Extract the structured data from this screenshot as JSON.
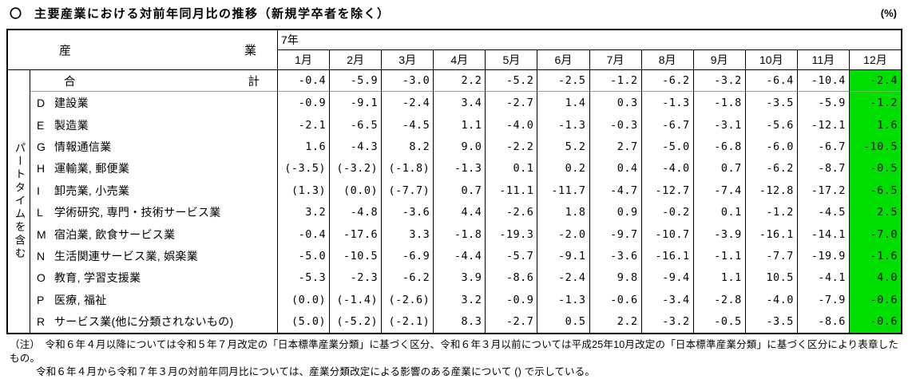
{
  "title": {
    "bullet": "〇",
    "text": "主要産業における対前年同月比の推移（新規学卒者を除く）",
    "unit": "(%)"
  },
  "table": {
    "industry_header_left": "産",
    "industry_header_right": "業",
    "year_label": "7年",
    "months": [
      "1月",
      "2月",
      "3月",
      "4月",
      "5月",
      "6月",
      "7月",
      "8月",
      "9月",
      "10月",
      "11月",
      "12月"
    ],
    "sidebar_label": "パートタイムを含む",
    "highlight_column": "12月",
    "highlight_color": "#00e000",
    "rows": [
      {
        "code": "",
        "name": "合計",
        "total": true,
        "values": [
          "-0.4",
          "-5.9",
          "-3.0",
          "2.2",
          "-5.2",
          "-2.5",
          "-1.2",
          "-6.2",
          "-3.2",
          "-6.4",
          "-10.4",
          "-2.4"
        ]
      },
      {
        "code": "D",
        "name": "建設業",
        "values": [
          "-0.9",
          "-9.1",
          "-2.4",
          "3.4",
          "-2.7",
          "1.4",
          "0.3",
          "-1.3",
          "-1.8",
          "-3.5",
          "-5.9",
          "-1.2"
        ]
      },
      {
        "code": "E",
        "name": "製造業",
        "values": [
          "-2.1",
          "-6.5",
          "-4.5",
          "1.1",
          "-4.0",
          "-1.3",
          "-0.3",
          "-6.7",
          "-3.1",
          "-5.6",
          "-12.1",
          "1.6"
        ]
      },
      {
        "code": "G",
        "name": "情報通信業",
        "values": [
          "1.6",
          "-4.3",
          "8.2",
          "9.0",
          "-2.2",
          "5.2",
          "2.7",
          "-5.0",
          "-6.8",
          "-6.0",
          "-6.7",
          "-10.5"
        ]
      },
      {
        "code": "H",
        "name": "運輸業, 郵便業",
        "values": [
          "(-3.5)",
          "(-3.2)",
          "(-1.8)",
          "-1.3",
          "0.1",
          "0.2",
          "0.4",
          "-4.0",
          "0.7",
          "-6.2",
          "-8.7",
          "-0.5"
        ]
      },
      {
        "code": "I",
        "name": "卸売業, 小売業",
        "values": [
          "(1.3)",
          "(0.0)",
          "(-7.7)",
          "0.7",
          "-11.1",
          "-11.7",
          "-4.7",
          "-12.7",
          "-7.4",
          "-12.8",
          "-17.2",
          "-6.5"
        ]
      },
      {
        "code": "L",
        "name": "学術研究, 専門・技術サービス業",
        "values": [
          "3.2",
          "-4.8",
          "-3.6",
          "4.4",
          "-2.6",
          "1.8",
          "0.9",
          "-0.2",
          "0.1",
          "-1.2",
          "-4.5",
          "2.5"
        ]
      },
      {
        "code": "M",
        "name": "宿泊業, 飲食サービス業",
        "values": [
          "-0.4",
          "-17.6",
          "3.3",
          "-1.8",
          "-19.3",
          "-2.0",
          "-9.7",
          "-10.7",
          "-3.9",
          "-16.1",
          "-14.1",
          "-7.0"
        ]
      },
      {
        "code": "N",
        "name": "生活関連サービス業, 娯楽業",
        "values": [
          "-5.0",
          "-10.5",
          "-6.9",
          "-4.4",
          "-5.7",
          "-9.1",
          "-3.6",
          "-16.1",
          "-1.1",
          "-7.7",
          "-19.9",
          "-1.6"
        ]
      },
      {
        "code": "O",
        "name": "教育, 学習支援業",
        "values": [
          "-5.3",
          "-2.3",
          "-6.2",
          "3.9",
          "-8.6",
          "-2.4",
          "9.8",
          "-9.4",
          "1.1",
          "10.5",
          "-4.1",
          "4.0"
        ]
      },
      {
        "code": "P",
        "name": "医療, 福祉",
        "values": [
          "(0.0)",
          "(-1.4)",
          "(-2.6)",
          "3.2",
          "-0.9",
          "-1.3",
          "-0.6",
          "-3.4",
          "-2.8",
          "-4.0",
          "-7.9",
          "-0.6"
        ]
      },
      {
        "code": "R",
        "name": "サービス業(他に分類されないもの)",
        "values": [
          "(5.0)",
          "(-5.2)",
          "(-2.1)",
          "8.3",
          "-2.7",
          "0.5",
          "2.2",
          "-3.2",
          "-0.5",
          "-3.5",
          "-8.6",
          "-0.6"
        ]
      }
    ]
  },
  "notes": [
    "（注）　令和６年４月以降については令和５年７月改定の「日本標準産業分類」に基づく区分、令和６年３月以前については平成25年10月改定の「日本標準産業分類」に基づく区分により表章したもの。",
    "令和６年４月から令和７年３月の対前年同月比については、産業分類改定による影響のある産業について () で示している。"
  ]
}
